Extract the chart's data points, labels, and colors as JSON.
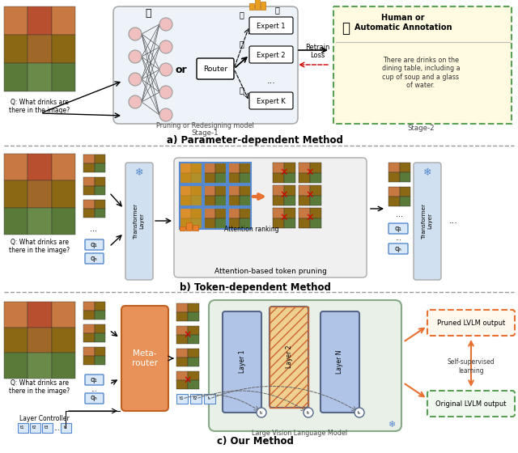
{
  "fig_width": 6.4,
  "fig_height": 5.6,
  "dpi": 100,
  "background_color": "#ffffff",
  "panel_a_label": "a) Parameter-dependent Method",
  "panel_b_label": "b) Token-dependent Method",
  "panel_c_label": "c) Our Method",
  "panel_a_sublabels": [
    "Stage-1",
    "Stage-2"
  ],
  "panel_a_box1_label": "Pruning or Redesigning model",
  "panel_a_annotation_title": "Human or\nAutomatic Annotation",
  "panel_a_annotation_text": "There are drinks on the\ndining table, including a\ncup of soup and a glass\nof water.",
  "panel_b_attention_label": "Attention ranking",
  "panel_b_pruning_label": "Attention-based token pruning",
  "panel_c_metarouter": "Meta-\nrouter",
  "panel_c_lvlm_label": "Large Vision Language Model",
  "panel_c_pruned": "Pruned LVLM output",
  "panel_c_original": "Original LVLM output",
  "panel_c_selfsuper": "Self-supervised\nlearning",
  "panel_c_controller": "Layer Controller",
  "color_blue_light": "#d0e0f0",
  "color_orange": "#e8925a",
  "color_green_dashed": "#5aa055",
  "color_yellow_bg": "#fffae0",
  "color_panel_bg": "#eef3fa",
  "color_panel_c_bg": "#e8f0e8",
  "question_text": "Q: What drinks are\nthere in the image?"
}
